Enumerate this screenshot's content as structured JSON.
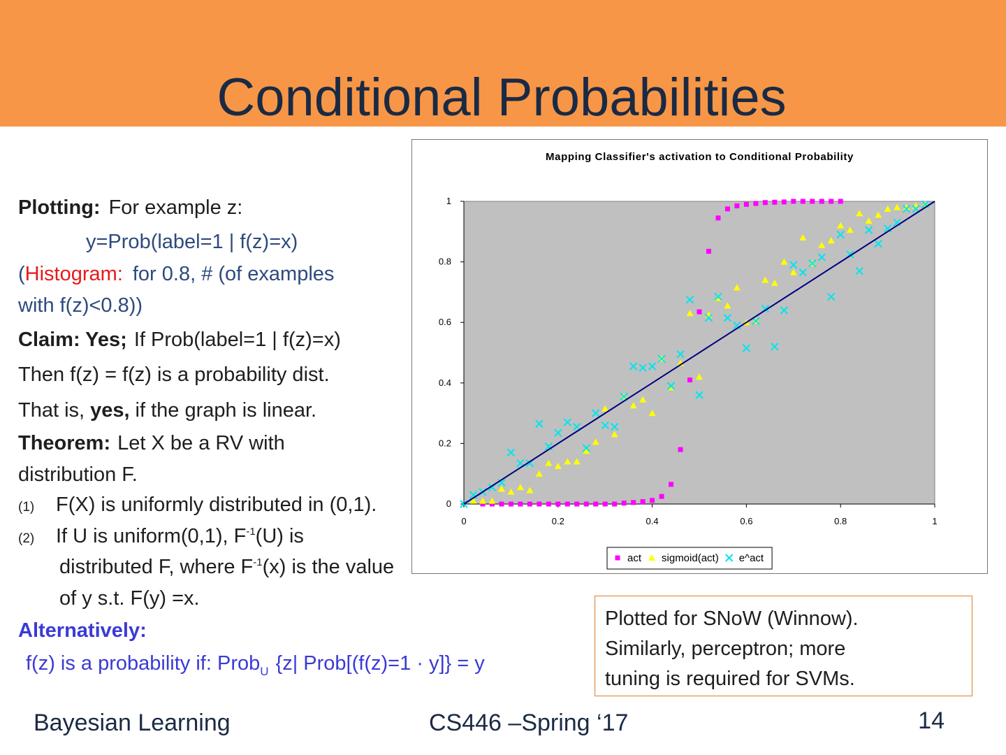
{
  "slide": {
    "title": "Conditional Probabilities"
  },
  "body": [
    [
      "Plotting:",
      "For example z:"
    ],
    [
      "y=Prob(label=1 | f(z)=x)"
    ],
    [
      "(",
      "Histogram:",
      "for 0.8, # (of examples"
    ],
    [
      "with f(z)<0.8))"
    ],
    [
      "Claim: Yes;",
      "If Prob(label=1 | f(z)=x)"
    ],
    [
      "Then f(z) = f(z) is a probability dist."
    ],
    [
      "That is,",
      "yes,",
      "if the graph is linear."
    ],
    [
      "Theorem:",
      "Let X be a RV with"
    ],
    [
      "distribution F."
    ],
    [
      "(1)",
      "F(X) is uniformly distributed in (0,1)."
    ],
    [
      "(2)",
      "If U is uniform(0,1), F",
      "-1",
      "(U) is"
    ],
    [
      "distributed F, where F",
      "-1",
      "(x) is the value"
    ],
    [
      "of y s.t. F(y) =x."
    ],
    [
      "Alternatively:"
    ],
    [
      "f(z) is a probability if:  Prob",
      "U",
      "{z| Prob[(f(z)=1 · y]} = y"
    ]
  ],
  "note": [
    "Plotted for SNoW (Winnow).",
    "Similarly, perceptron; more",
    "tuning is required for SVMs."
  ],
  "footer": {
    "left": "Bayesian Learning",
    "center": "CS446 –Spring ‘17",
    "page": "14"
  },
  "chart_data": {
    "type": "scatter",
    "title": "Mapping Classifier's activation to Conditional Probability",
    "xlim": [
      0,
      1
    ],
    "ylim": [
      0,
      1
    ],
    "xticks": [
      0,
      0.2,
      0.4,
      0.6,
      0.8,
      1
    ],
    "yticks": [
      0,
      0.2,
      0.4,
      0.6,
      0.8,
      1
    ],
    "series": [
      {
        "name": "act",
        "color": "#ff00ff",
        "marker": "square",
        "x": [
          0.04,
          0.06,
          0.08,
          0.1,
          0.12,
          0.14,
          0.16,
          0.18,
          0.2,
          0.22,
          0.24,
          0.26,
          0.28,
          0.3,
          0.32,
          0.34,
          0.36,
          0.38,
          0.4,
          0.42,
          0.44,
          0.46,
          0.48,
          0.5,
          0.52,
          0.54,
          0.56,
          0.58,
          0.6,
          0.62,
          0.64,
          0.66,
          0.68,
          0.7,
          0.72,
          0.74,
          0.76,
          0.78,
          0.8
        ],
        "values": [
          0,
          0,
          0,
          0,
          0,
          0,
          0,
          0,
          0,
          0,
          0,
          0,
          0,
          0,
          0,
          0.003,
          0.005,
          0.008,
          0.012,
          0.025,
          0.065,
          0.18,
          0.41,
          0.635,
          0.835,
          0.945,
          0.975,
          0.985,
          0.99,
          0.993,
          0.996,
          0.997,
          0.998,
          1,
          1,
          1,
          1,
          1,
          1
        ]
      },
      {
        "name": "sigmoid(act)",
        "color": "#ffff00",
        "marker": "triangle",
        "x": [
          0.02,
          0.04,
          0.06,
          0.08,
          0.1,
          0.12,
          0.14,
          0.16,
          0.18,
          0.2,
          0.22,
          0.24,
          0.26,
          0.28,
          0.3,
          0.32,
          0.34,
          0.36,
          0.38,
          0.4,
          0.42,
          0.44,
          0.46,
          0.48,
          0.5,
          0.52,
          0.54,
          0.56,
          0.58,
          0.6,
          0.62,
          0.64,
          0.66,
          0.68,
          0.7,
          0.72,
          0.74,
          0.76,
          0.78,
          0.8,
          0.82,
          0.84,
          0.86,
          0.88,
          0.9,
          0.92,
          0.94,
          0.96,
          0.98
        ],
        "values": [
          0.01,
          0.01,
          0.01,
          0.05,
          0.04,
          0.055,
          0.045,
          0.1,
          0.135,
          0.125,
          0.14,
          0.14,
          0.175,
          0.205,
          0.315,
          0.23,
          0.355,
          0.325,
          0.345,
          0.3,
          0.48,
          0.385,
          0.465,
          0.63,
          0.42,
          0.625,
          0.68,
          0.655,
          0.715,
          0.6,
          0.605,
          0.74,
          0.73,
          0.8,
          0.765,
          0.88,
          0.795,
          0.855,
          0.87,
          0.92,
          0.905,
          0.96,
          0.935,
          0.955,
          0.975,
          0.98,
          0.98,
          0.985,
          0.99
        ]
      },
      {
        "name": "e^act",
        "color": "#00e5ee",
        "marker": "x",
        "x": [
          0,
          0.02,
          0.04,
          0.06,
          0.08,
          0.1,
          0.12,
          0.14,
          0.16,
          0.18,
          0.2,
          0.22,
          0.24,
          0.26,
          0.28,
          0.3,
          0.32,
          0.34,
          0.36,
          0.38,
          0.4,
          0.42,
          0.44,
          0.46,
          0.48,
          0.5,
          0.52,
          0.54,
          0.56,
          0.58,
          0.6,
          0.62,
          0.64,
          0.66,
          0.68,
          0.7,
          0.72,
          0.74,
          0.76,
          0.78,
          0.8,
          0.82,
          0.84,
          0.86,
          0.88,
          0.9,
          0.92,
          0.94,
          0.96,
          0.98
        ],
        "values": [
          0,
          0.03,
          0.04,
          0.055,
          0.07,
          0.17,
          0.135,
          0.135,
          0.265,
          0.19,
          0.235,
          0.27,
          0.255,
          0.185,
          0.3,
          0.26,
          0.255,
          0.355,
          0.455,
          0.45,
          0.455,
          0.48,
          0.39,
          0.495,
          0.675,
          0.36,
          0.615,
          0.685,
          0.615,
          0.59,
          0.515,
          0.605,
          0.645,
          0.52,
          0.64,
          0.79,
          0.765,
          0.795,
          0.815,
          0.685,
          0.89,
          0.825,
          0.77,
          0.905,
          0.86,
          0.91,
          0.93,
          0.975,
          0.975,
          0.99
        ]
      },
      {
        "color": "#000080",
        "marker": "line",
        "x": [
          0,
          0.1,
          0.2,
          0.3,
          0.4,
          0.5,
          0.6,
          0.7,
          0.8,
          0.9,
          1
        ],
        "values": [
          0,
          0.1,
          0.2,
          0.3,
          0.4,
          0.5,
          0.6,
          0.7,
          0.8,
          0.9,
          1
        ]
      }
    ]
  }
}
